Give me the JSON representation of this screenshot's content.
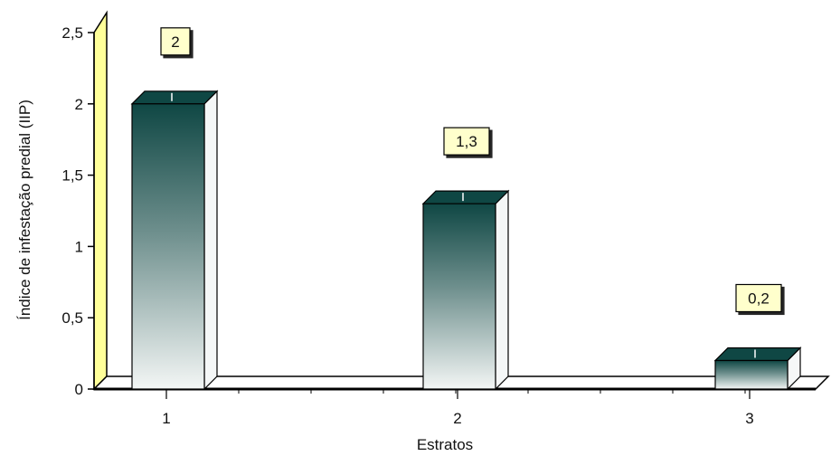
{
  "chart_data": {
    "type": "bar",
    "title": "",
    "xlabel": "Estratos",
    "ylabel": "Índice de infestação predial (IIP)",
    "categories": [
      "1",
      "2",
      "3"
    ],
    "values": [
      2,
      1.3,
      0.2
    ],
    "data_labels": [
      "2",
      "1,3",
      "0,2"
    ],
    "ylim": [
      0,
      2.5
    ],
    "yticks": [
      0,
      0.5,
      1,
      1.5,
      2,
      2.5
    ],
    "ytick_labels": [
      "0",
      "0,5",
      "1",
      "1,5",
      "2",
      "2,5"
    ],
    "grid": false,
    "legend": "none",
    "style": "3d",
    "colors": {
      "bar_top": "#0f4744",
      "bar_bottom": "#f3f6f5",
      "side_wall": "#ffff99",
      "label_box": "#ffffcc"
    }
  }
}
